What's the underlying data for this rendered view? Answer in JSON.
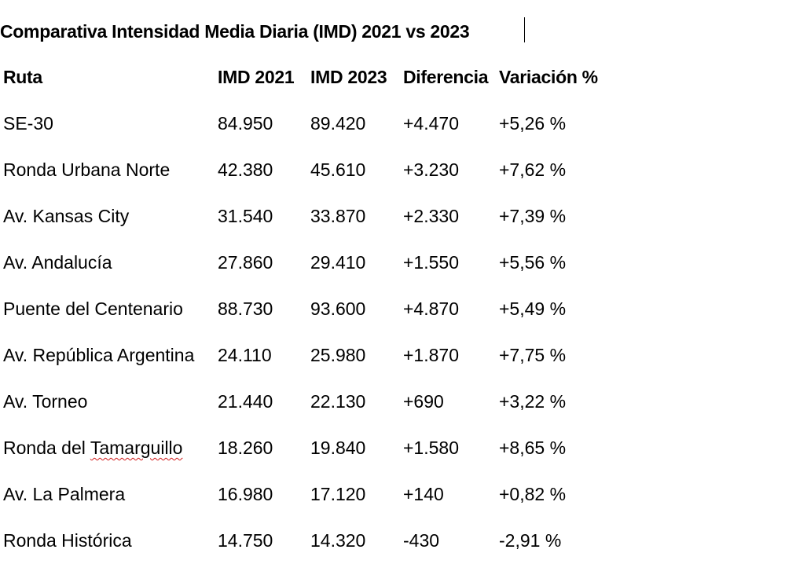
{
  "document": {
    "title": "Comparativa Intensidad Media Diaria (IMD) 2021 vs 2023"
  },
  "table": {
    "headers": {
      "route": "Ruta",
      "imd2021": "IMD 2021",
      "imd2023": "IMD 2023",
      "difference": "Diferencia",
      "variation": "Variación %"
    },
    "rows": [
      {
        "route": "SE-30",
        "imd2021": "84.950",
        "imd2023": "89.420",
        "difference": "+4.470",
        "variation": "+5,26 %"
      },
      {
        "route": "Ronda Urbana Norte",
        "imd2021": "42.380",
        "imd2023": "45.610",
        "difference": "+3.230",
        "variation": "+7,62 %"
      },
      {
        "route": "Av. Kansas City",
        "imd2021": "31.540",
        "imd2023": "33.870",
        "difference": "+2.330",
        "variation": "+7,39 %"
      },
      {
        "route": "Av. Andalucía",
        "imd2021": "27.860",
        "imd2023": "29.410",
        "difference": "+1.550",
        "variation": "+5,56 %"
      },
      {
        "route": "Puente del Centenario",
        "imd2021": "88.730",
        "imd2023": "93.600",
        "difference": "+4.870",
        "variation": "+5,49 %"
      },
      {
        "route": "Av. República Argentina",
        "imd2021": "24.110",
        "imd2023": "25.980",
        "difference": "+1.870",
        "variation": "+7,75 %"
      },
      {
        "route": "Av. Torneo",
        "imd2021": "21.440",
        "imd2023": "22.130",
        "difference": "+690",
        "variation": "+3,22 %"
      },
      {
        "route_prefix": "Ronda del ",
        "route_flagged": "Tamarguillo",
        "imd2021": "18.260",
        "imd2023": "19.840",
        "difference": "+1.580",
        "variation": "+8,65 %"
      },
      {
        "route": "Av. La Palmera",
        "imd2021": "16.980",
        "imd2023": "17.120",
        "difference": "+140",
        "variation": "+0,82 %"
      },
      {
        "route": "Ronda Histórica",
        "imd2021": "14.750",
        "imd2023": "14.320",
        "difference": "-430",
        "variation": "-2,91 %"
      }
    ]
  },
  "colors": {
    "text": "#000000",
    "spellcheck_underline": "#d11a1a",
    "background": "#ffffff"
  }
}
